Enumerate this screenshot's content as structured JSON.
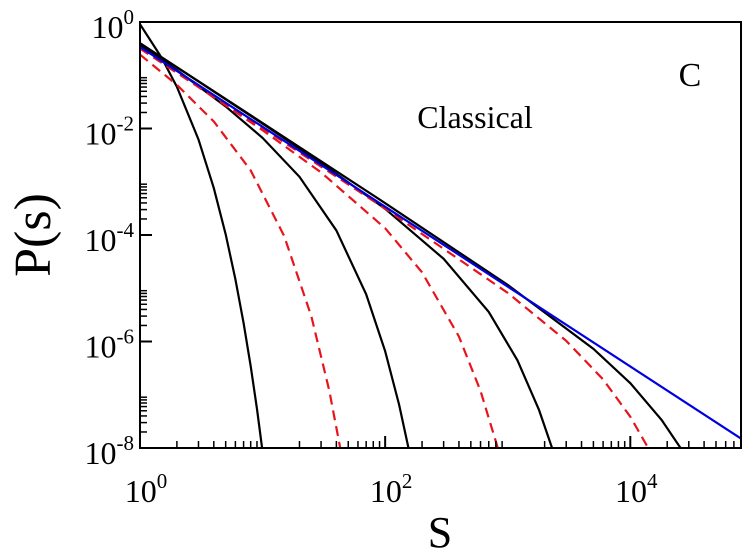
{
  "chart_data": {
    "type": "line",
    "log_x": true,
    "log_y": true,
    "minor_ticks": true,
    "xlabel": "S",
    "ylabel": "P(s)",
    "annotations": [
      "C",
      "Classical"
    ],
    "xlim": [
      1,
      80000
    ],
    "ylim": [
      1e-08,
      1
    ],
    "xticks": [
      {
        "value": 1,
        "label": "10",
        "exponent": "0"
      },
      {
        "value": 100,
        "label": "10",
        "exponent": "2"
      },
      {
        "value": 10000,
        "label": "10",
        "exponent": "4"
      }
    ],
    "yticks": [
      {
        "value": 1e-08,
        "label": "10",
        "exponent": "-8"
      },
      {
        "value": 1e-06,
        "label": "10",
        "exponent": "-6"
      },
      {
        "value": 0.0001,
        "label": "10",
        "exponent": "-4"
      },
      {
        "value": 0.01,
        "label": "10",
        "exponent": "-2"
      },
      {
        "value": 1,
        "label": "10",
        "exponent": "0"
      }
    ],
    "series": [
      {
        "color": "#000000",
        "dashed": false,
        "x": [
          1,
          1.5,
          2,
          3,
          4,
          5,
          6,
          7,
          8,
          9,
          10
        ],
        "values": [
          0.907,
          0.214,
          0.0606,
          0.00623,
          0.000762,
          0.000103,
          1.48e-05,
          2.22e-06,
          3.44e-07,
          5.44e-08,
          8.5e-09
        ]
      },
      {
        "color": "#e8141c",
        "dashed": true,
        "x": [
          1,
          2,
          4,
          8,
          15,
          25,
          35,
          43
        ],
        "values": [
          0.244,
          0.066,
          0.01356,
          0.00163,
          9.56e-05,
          2.97e-06,
          1.2e-07,
          1e-08
        ]
      },
      {
        "color": "#000000",
        "dashed": false,
        "x": [
          1,
          2,
          5,
          10,
          20,
          40,
          70,
          100,
          130,
          155
        ],
        "values": [
          0.375,
          0.1245,
          0.02597,
          0.00667,
          0.001241,
          0.0001218,
          7.69e-06,
          6.58e-07,
          6.48e-08,
          1e-08
        ]
      },
      {
        "color": "#e8141c",
        "dashed": true,
        "x": [
          1,
          3,
          10,
          30,
          100,
          200,
          400,
          600,
          830
        ],
        "values": [
          0.317,
          0.06,
          0.00928,
          0.0015,
          0.000134,
          1.99e-05,
          1.236e-06,
          1.18e-07,
          1e-08
        ]
      },
      {
        "color": "#000000",
        "dashed": false,
        "x": [
          1,
          3,
          10,
          30,
          100,
          300,
          700,
          1200,
          1800,
          2300
        ],
        "values": [
          0.399,
          0.0764,
          0.01233,
          0.002254,
          0.00031,
          3.57e-05,
          3.59e-06,
          4.44e-07,
          5.18e-08,
          1e-08
        ]
      },
      {
        "color": "#e8141c",
        "dashed": true,
        "x": [
          1,
          10,
          100,
          1000,
          3000,
          6000,
          10000,
          14000
        ],
        "values": [
          0.32,
          0.0101,
          0.000313,
          8.19e-06,
          1.03e-06,
          1.94e-07,
          3.87e-08,
          1e-08
        ]
      },
      {
        "color": "#000000",
        "dashed": false,
        "x": [
          1,
          10,
          100,
          1000,
          5000,
          10000,
          18000,
          25700
        ],
        "values": [
          0.4,
          0.01265,
          0.000396,
          1.157e-05,
          7.27e-07,
          1.65e-07,
          3.37e-08,
          1e-08
        ]
      },
      {
        "color": "#0000e0",
        "dashed": false,
        "x": [
          1,
          80000
        ],
        "values": [
          0.34,
          1.5e-08
        ]
      }
    ]
  }
}
